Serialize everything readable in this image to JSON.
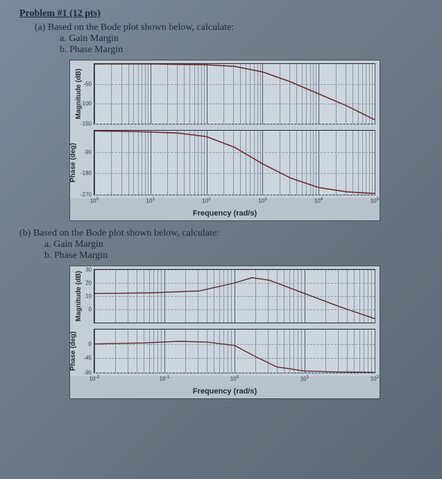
{
  "title": "Problem #1 (12 pts)",
  "partA": {
    "prompt": "(a) Based on the Bode plot shown below, calculate:",
    "itemA": "a.   Gain Margin",
    "itemB": "b.   Phase Margin"
  },
  "partB": {
    "prompt": "(b) Based on the Bode plot shown below, calculate:",
    "itemA": "a.   Gain Margin",
    "itemB": "b.   Phase Margin"
  },
  "labels": {
    "mag": "Magnitude (dB)",
    "phase": "Phase (deg)",
    "freqA": "Frequency (rad/s)",
    "freqB": "Frequency (rad/s)"
  },
  "chartA": {
    "type": "bode",
    "x_log_decades": [
      0,
      1,
      2,
      3,
      4,
      5
    ],
    "xtick_labels": [
      "10^0",
      "10^1",
      "10^2",
      "10^3",
      "10^4",
      "10^5"
    ],
    "mag": {
      "ylim": [
        -150,
        0
      ],
      "yticks": [
        -50,
        -100,
        -150
      ],
      "curve_color": "#6b2a2a",
      "curve_width": 1.6,
      "points": [
        [
          0,
          0
        ],
        [
          1,
          0
        ],
        [
          2,
          -2
        ],
        [
          2.5,
          -6
        ],
        [
          3,
          -20
        ],
        [
          3.5,
          -45
        ],
        [
          4,
          -75
        ],
        [
          4.5,
          -105
        ],
        [
          5,
          -140
        ]
      ],
      "grid_color": "#8895a3",
      "background": "#cdd5dd"
    },
    "phase": {
      "ylim": [
        -270,
        0
      ],
      "yticks": [
        -90,
        -180,
        -270
      ],
      "curve_color": "#6b2a2a",
      "curve_width": 1.6,
      "points": [
        [
          0,
          -1
        ],
        [
          0.8,
          -4
        ],
        [
          1.5,
          -10
        ],
        [
          2,
          -25
        ],
        [
          2.5,
          -70
        ],
        [
          3,
          -140
        ],
        [
          3.5,
          -200
        ],
        [
          4,
          -240
        ],
        [
          4.5,
          -258
        ],
        [
          5,
          -265
        ]
      ],
      "grid_color": "#8895a3",
      "background": "#cdd5dd"
    }
  },
  "chartB": {
    "type": "bode",
    "x_log_decades": [
      -2,
      -1,
      0,
      1,
      2
    ],
    "xtick_labels": [
      "10^-2",
      "10^-1",
      "10^0",
      "10^1",
      "10^2"
    ],
    "mag": {
      "ylim": [
        -10,
        30
      ],
      "yticks": [
        0,
        10,
        20,
        30
      ],
      "curve_color": "#5a2a2a",
      "curve_width": 1.4,
      "points": [
        [
          -2,
          12
        ],
        [
          -1.2,
          12.5
        ],
        [
          -0.5,
          14
        ],
        [
          0,
          20
        ],
        [
          0.25,
          24
        ],
        [
          0.5,
          22
        ],
        [
          1,
          12
        ],
        [
          1.5,
          2
        ],
        [
          2,
          -7
        ]
      ],
      "grid_color": "#8895a3",
      "background": "#cdd5dd"
    },
    "phase": {
      "ylim": [
        -90,
        45
      ],
      "yticks": [
        0,
        -45,
        -90
      ],
      "curve_color": "#5a2a2a",
      "curve_width": 1.4,
      "points": [
        [
          -2,
          0
        ],
        [
          -1.3,
          3
        ],
        [
          -0.8,
          8
        ],
        [
          -0.4,
          6
        ],
        [
          0,
          -5
        ],
        [
          0.3,
          -40
        ],
        [
          0.6,
          -72
        ],
        [
          1,
          -85
        ],
        [
          1.5,
          -88
        ],
        [
          2,
          -89
        ]
      ],
      "grid_color": "#8895a3",
      "background": "#cdd5dd"
    }
  },
  "log_minor": [
    0.301,
    0.477,
    0.602,
    0.699,
    0.778,
    0.845,
    0.903,
    0.954
  ]
}
